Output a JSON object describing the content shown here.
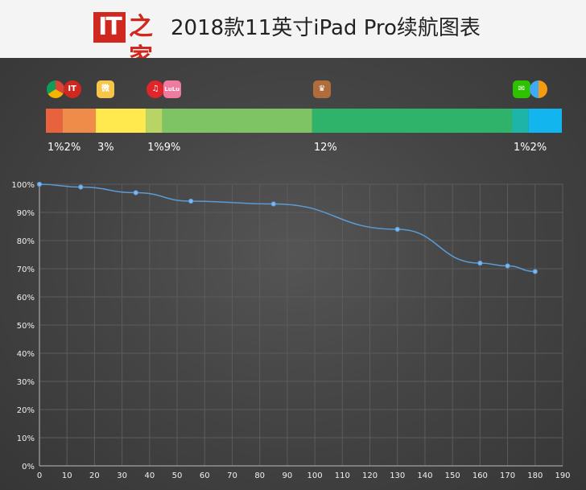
{
  "header": {
    "logo_it": "IT",
    "logo_zh": "之家",
    "title": "2018款11英寸iPad Pro续航图表"
  },
  "apps": [
    {
      "icon": "chrome-icon",
      "percent": "1%",
      "color": "#e8623e",
      "from": 0,
      "to": 1
    },
    {
      "icon": "ithome-icon",
      "percent": "2%",
      "color": "#f08c4a",
      "from": 1,
      "to": 3
    },
    {
      "icon": "weibo-icon",
      "percent": "3%",
      "color": "#ffe94f",
      "from": 3,
      "to": 6
    },
    {
      "icon": "netease-music-icon",
      "percent": "1%",
      "color": "#b7d465",
      "from": 6,
      "to": 7
    },
    {
      "icon": "lofter-video-icon",
      "percent": "9%",
      "color": "#7ec464",
      "from": 7,
      "to": 16
    },
    {
      "icon": "game-icon",
      "percent": "12%",
      "color": "#2fb36a",
      "from": 16,
      "to": 28
    },
    {
      "icon": "wechat-icon",
      "percent": "1%",
      "color": "#1eb5a8",
      "from": 28,
      "to": 29
    },
    {
      "icon": "safari-browser-icon",
      "percent": "2%",
      "color": "#12b5ee",
      "from": 29,
      "to": 31
    }
  ],
  "chart_data": {
    "type": "line",
    "x": [
      0,
      15,
      35,
      55,
      85,
      130,
      160,
      170,
      180
    ],
    "y": [
      100,
      99,
      97,
      94,
      93,
      84,
      72,
      71,
      69
    ],
    "xlim": [
      0,
      190
    ],
    "ylim": [
      0,
      100
    ],
    "xticks": [
      0,
      10,
      20,
      30,
      40,
      50,
      60,
      70,
      80,
      90,
      100,
      110,
      120,
      130,
      140,
      150,
      160,
      170,
      180,
      190
    ],
    "yticks": [
      0,
      10,
      20,
      30,
      40,
      50,
      60,
      70,
      80,
      90,
      100
    ],
    "ytick_suffix": "%",
    "grid": true,
    "line_color": "#5b9bd5",
    "title": "",
    "xlabel": "",
    "ylabel": ""
  }
}
